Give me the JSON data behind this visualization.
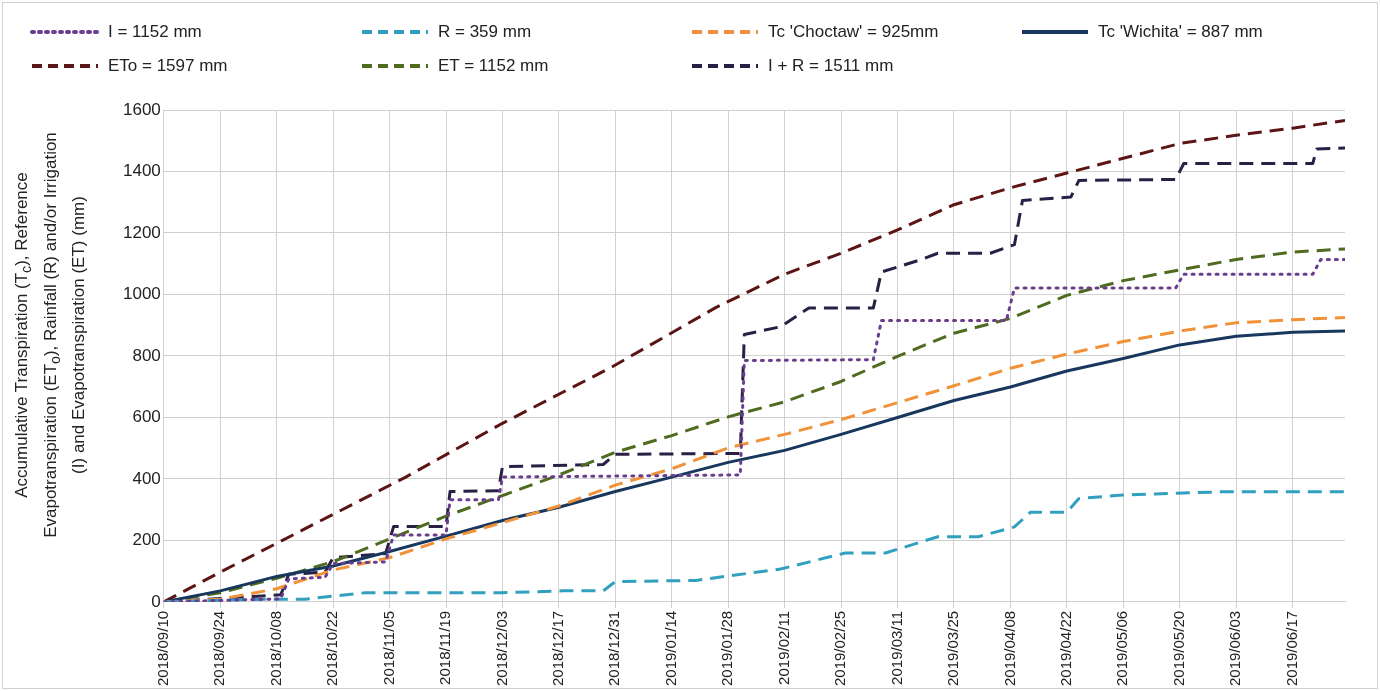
{
  "chart_data": {
    "type": "line",
    "ylabel": "Accumulative Transpiration (T$_{c}$), Reference Evapotranspiration (ET$_{o}$), Rainfall (R) and/or Irrigation (I) and Evapotranspiration (ET) (mm)",
    "xlim": [
      "2018-09-10",
      "2019-06-30"
    ],
    "xticks": [
      {
        "value": "2018-09-10",
        "label": "2018/09/10"
      },
      {
        "value": "2018-09-24",
        "label": "2018/09/24"
      },
      {
        "value": "2018-10-08",
        "label": "2018/10/08"
      },
      {
        "value": "2018-10-22",
        "label": "2018/10/22"
      },
      {
        "value": "2018-11-05",
        "label": "2018/11/05"
      },
      {
        "value": "2018-11-19",
        "label": "2018/11/19"
      },
      {
        "value": "2018-12-03",
        "label": "2018/12/03"
      },
      {
        "value": "2018-12-17",
        "label": "2018/12/17"
      },
      {
        "value": "2018-12-31",
        "label": "2018/12/31"
      },
      {
        "value": "2019-01-14",
        "label": "2019/01/14"
      },
      {
        "value": "2019-01-28",
        "label": "2019/01/28"
      },
      {
        "value": "2019-02-11",
        "label": "2019/02/11"
      },
      {
        "value": "2019-02-25",
        "label": "2019/02/25"
      },
      {
        "value": "2019-03-11",
        "label": "2019/03/11"
      },
      {
        "value": "2019-03-25",
        "label": "2019/03/25"
      },
      {
        "value": "2019-04-08",
        "label": "2019/04/08"
      },
      {
        "value": "2019-04-22",
        "label": "2019/04/22"
      },
      {
        "value": "2019-05-06",
        "label": "2019/05/06"
      },
      {
        "value": "2019-05-20",
        "label": "2019/05/20"
      },
      {
        "value": "2019-06-03",
        "label": "2019/06/03"
      },
      {
        "value": "2019-06-17",
        "label": "2019/06/17"
      }
    ],
    "ylim": [
      0,
      1600
    ],
    "yticks": [
      0,
      200,
      400,
      600,
      800,
      1000,
      1200,
      1400,
      1600
    ],
    "grid": true,
    "legend": "top",
    "marker": "none",
    "series": [
      {
        "name": "I = 1152 mm",
        "color": "#6b3d8f",
        "line_style": "dotted",
        "x": [
          "2018-09-10",
          "2018-10-09",
          "2018-10-11",
          "2018-10-20",
          "2018-10-22",
          "2018-11-04",
          "2018-11-06",
          "2018-11-19",
          "2018-11-20",
          "2018-12-02",
          "2018-12-03",
          "2019-01-31",
          "2019-02-01",
          "2019-03-05",
          "2019-03-07",
          "2019-04-07",
          "2019-04-09",
          "2019-05-19",
          "2019-05-21",
          "2019-06-22",
          "2019-06-24",
          "2019-06-30"
        ],
        "values": [
          0,
          10,
          75,
          80,
          125,
          130,
          218,
          218,
          332,
          332,
          406,
          413,
          785,
          788,
          915,
          915,
          1021,
          1021,
          1066,
          1066,
          1114,
          1114
        ]
      },
      {
        "name": "R = 359 mm",
        "color": "#31a0bf",
        "line_style": "dashed",
        "x": [
          "2018-09-10",
          "2018-10-05",
          "2018-10-15",
          "2018-10-30",
          "2018-12-03",
          "2018-12-18",
          "2018-12-28",
          "2018-12-31",
          "2019-01-20",
          "2019-02-03",
          "2019-02-10",
          "2019-02-26",
          "2019-03-08",
          "2019-03-21",
          "2019-03-31",
          "2019-04-09",
          "2019-04-13",
          "2019-04-22",
          "2019-04-25",
          "2019-05-05",
          "2019-05-14",
          "2019-05-30",
          "2019-06-30"
        ],
        "values": [
          0,
          9,
          9,
          30,
          30,
          36,
          36,
          66,
          70,
          95,
          107,
          159,
          159,
          212,
          212,
          244,
          292,
          292,
          336,
          347,
          351,
          358,
          358
        ]
      },
      {
        "name": "Tc 'Choctaw' = 925mm",
        "color": "#f0923a",
        "line_style": "dashed",
        "x": [
          "2018-09-10",
          "2018-09-24",
          "2018-10-08",
          "2018-10-22",
          "2018-11-05",
          "2018-11-19",
          "2018-12-03",
          "2018-12-17",
          "2018-12-31",
          "2019-01-14",
          "2019-01-28",
          "2019-02-11",
          "2019-02-25",
          "2019-03-11",
          "2019-03-25",
          "2019-04-08",
          "2019-04-22",
          "2019-05-06",
          "2019-05-20",
          "2019-06-03",
          "2019-06-17",
          "2019-06-30"
        ],
        "values": [
          0,
          9,
          43,
          104,
          144,
          205,
          258,
          312,
          380,
          433,
          501,
          545,
          593,
          648,
          703,
          760,
          806,
          847,
          881,
          908,
          918,
          925
        ]
      },
      {
        "name": "Tc 'Wichita' = 887 mm",
        "color": "#17375e",
        "line_style": "solid",
        "x": [
          "2018-09-10",
          "2018-09-24",
          "2018-10-08",
          "2018-10-22",
          "2018-11-05",
          "2018-11-19",
          "2018-12-03",
          "2018-12-17",
          "2018-12-31",
          "2019-01-14",
          "2019-01-28",
          "2019-02-11",
          "2019-02-25",
          "2019-03-11",
          "2019-03-25",
          "2019-04-08",
          "2019-04-22",
          "2019-05-06",
          "2019-05-20",
          "2019-06-03",
          "2019-06-17",
          "2019-06-30"
        ],
        "values": [
          0,
          36,
          83,
          117,
          164,
          214,
          265,
          308,
          359,
          406,
          454,
          493,
          545,
          600,
          655,
          699,
          751,
          792,
          836,
          864,
          877,
          881
        ]
      },
      {
        "name": "ETo = 1597 mm",
        "color": "#5c1414",
        "line_style": "dashed",
        "x": [
          "2018-09-10",
          "2018-09-24",
          "2018-10-14",
          "2018-11-09",
          "2018-12-03",
          "2018-12-30",
          "2019-01-25",
          "2019-02-11",
          "2019-02-25",
          "2019-03-11",
          "2019-03-25",
          "2019-04-08",
          "2019-04-22",
          "2019-05-06",
          "2019-05-20",
          "2019-06-03",
          "2019-06-17",
          "2019-06-30"
        ],
        "values": [
          0,
          97,
          231,
          406,
          581,
          763,
          958,
          1066,
          1134,
          1210,
          1292,
          1347,
          1395,
          1443,
          1491,
          1518,
          1541,
          1566
        ]
      },
      {
        "name": "ET = 1152 mm",
        "color": "#4f6b1f",
        "line_style": "dashed",
        "x": [
          "2018-09-10",
          "2018-09-24",
          "2018-10-08",
          "2018-10-22",
          "2018-11-05",
          "2018-11-19",
          "2018-12-03",
          "2018-12-17",
          "2018-12-31",
          "2019-01-14",
          "2019-01-28",
          "2019-02-11",
          "2019-02-25",
          "2019-03-11",
          "2019-03-25",
          "2019-04-08",
          "2019-04-22",
          "2019-05-06",
          "2019-05-20",
          "2019-06-03",
          "2019-06-17",
          "2019-06-30"
        ],
        "values": [
          0,
          30,
          77,
          131,
          205,
          279,
          346,
          413,
          487,
          541,
          602,
          651,
          717,
          799,
          874,
          922,
          997,
          1045,
          1080,
          1114,
          1138,
          1148
        ]
      },
      {
        "name": "I + R = 1511 mm",
        "color": "#2a1f45",
        "line_style": "dashed",
        "x": [
          "2018-09-10",
          "2018-10-09",
          "2018-10-11",
          "2018-10-20",
          "2018-10-22",
          "2018-11-04",
          "2018-11-06",
          "2018-11-19",
          "2018-11-20",
          "2018-12-02",
          "2018-12-03",
          "2018-12-28",
          "2018-12-31",
          "2019-01-31",
          "2019-02-01",
          "2019-02-10",
          "2019-02-17",
          "2019-03-05",
          "2019-03-07",
          "2019-03-17",
          "2019-03-21",
          "2019-04-03",
          "2019-04-09",
          "2019-04-11",
          "2019-04-23",
          "2019-04-25",
          "2019-05-19",
          "2019-05-21",
          "2019-06-22",
          "2019-06-23",
          "2019-06-30"
        ],
        "values": [
          0,
          23,
          90,
          97,
          144,
          157,
          245,
          245,
          359,
          362,
          440,
          447,
          480,
          483,
          870,
          895,
          956,
          956,
          1073,
          1114,
          1134,
          1134,
          1162,
          1306,
          1317,
          1371,
          1374,
          1426,
          1426,
          1473,
          1476
        ]
      }
    ]
  }
}
